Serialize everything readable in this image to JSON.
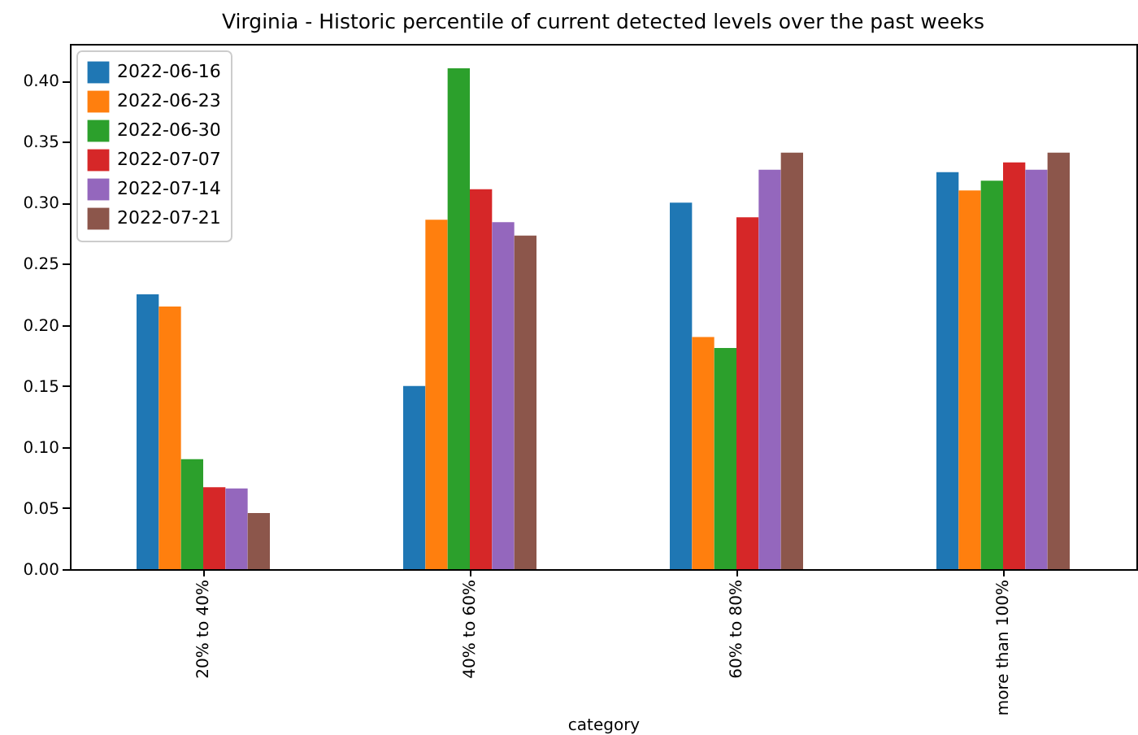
{
  "chart_data": {
    "type": "bar",
    "title": "Virginia - Historic percentile of current detected levels over the past weeks",
    "xlabel": "category",
    "categories": [
      "20% to 40%",
      "40% to 60%",
      "60% to 80%",
      "more than 100%"
    ],
    "series": [
      {
        "name": "2022-06-16",
        "color": "#1f77b4",
        "values": [
          0.225,
          0.15,
          0.3,
          0.325
        ]
      },
      {
        "name": "2022-06-23",
        "color": "#ff7f0e",
        "values": [
          0.215,
          0.286,
          0.19,
          0.31
        ]
      },
      {
        "name": "2022-06-30",
        "color": "#2ca02c",
        "values": [
          0.09,
          0.41,
          0.181,
          0.318
        ]
      },
      {
        "name": "2022-07-07",
        "color": "#d62728",
        "values": [
          0.067,
          0.311,
          0.288,
          0.333
        ]
      },
      {
        "name": "2022-07-14",
        "color": "#9467bd",
        "values": [
          0.066,
          0.284,
          0.327,
          0.327
        ]
      },
      {
        "name": "2022-07-21",
        "color": "#8c564b",
        "values": [
          0.046,
          0.273,
          0.341,
          0.341
        ]
      }
    ],
    "ylim": [
      0,
      0.43
    ],
    "yticks": [
      {
        "value": 0,
        "label": "0.00"
      },
      0.05,
      {
        "value": 0.1,
        "label": "0.10"
      },
      0.15,
      {
        "value": 0.2,
        "label": "0.20"
      },
      0.25,
      {
        "value": 0.3,
        "label": "0.30"
      },
      0.35,
      {
        "value": 0.4,
        "label": "0.40"
      }
    ],
    "grid": false,
    "legend": "top left"
  }
}
